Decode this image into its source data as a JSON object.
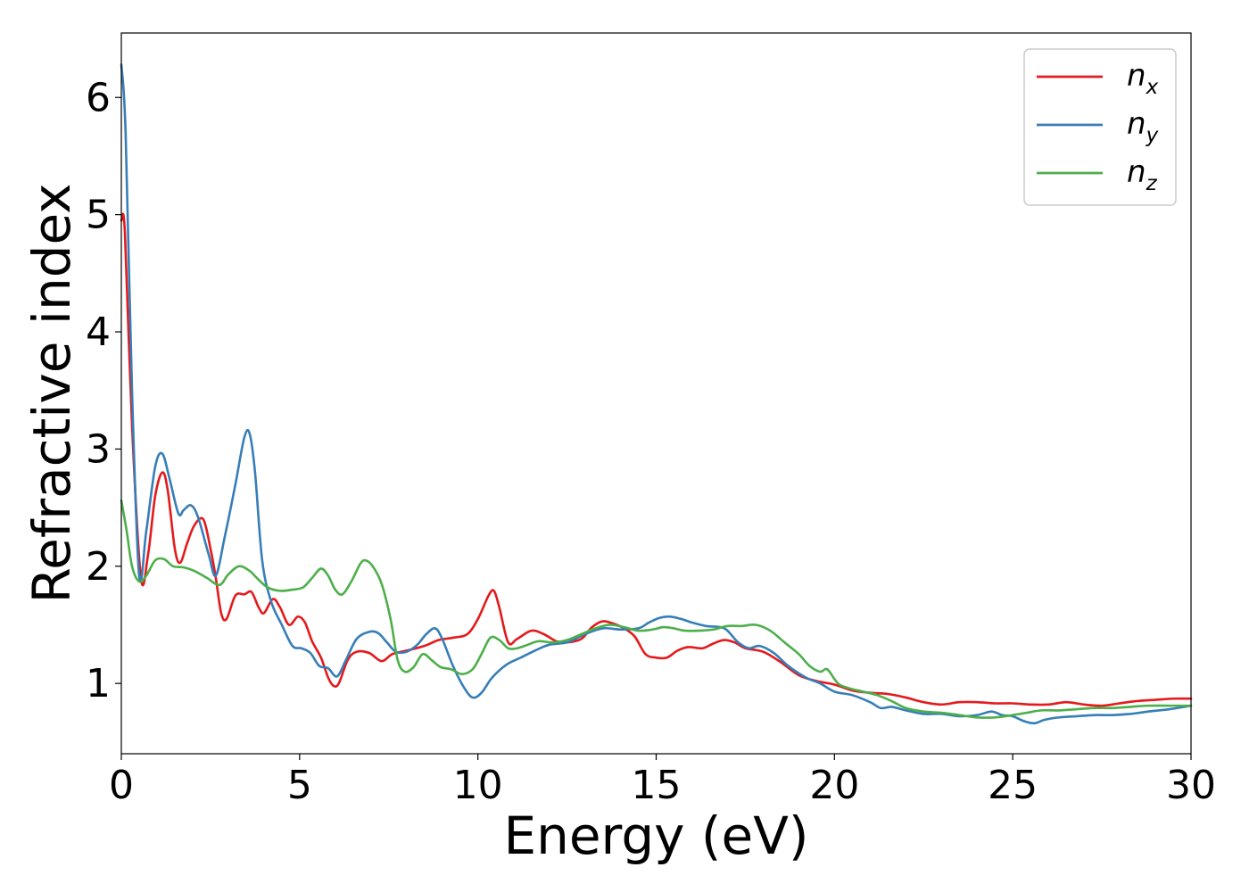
{
  "chart_data": {
    "type": "line",
    "title": "",
    "xlabel": "Energy (eV)",
    "ylabel": "Refractive index",
    "xlim": [
      0,
      30
    ],
    "ylim": [
      0.4,
      6.55
    ],
    "xticks": [
      0,
      5,
      10,
      15,
      20,
      25,
      30
    ],
    "yticks": [
      1,
      2,
      3,
      4,
      5,
      6
    ],
    "grid": false,
    "legend_position": "top-right",
    "series": [
      {
        "name": "n",
        "subscript": "x",
        "color": "#e41a1c",
        "points": [
          [
            0,
            4.95
          ],
          [
            0.1,
            4.85
          ],
          [
            0.3,
            3.2
          ],
          [
            0.55,
            1.9
          ],
          [
            0.75,
            2.1
          ],
          [
            0.95,
            2.6
          ],
          [
            1.15,
            2.8
          ],
          [
            1.3,
            2.65
          ],
          [
            1.5,
            2.15
          ],
          [
            1.65,
            2.03
          ],
          [
            1.85,
            2.2
          ],
          [
            2.05,
            2.35
          ],
          [
            2.3,
            2.4
          ],
          [
            2.5,
            2.15
          ],
          [
            2.65,
            1.9
          ],
          [
            2.8,
            1.6
          ],
          [
            2.95,
            1.55
          ],
          [
            3.2,
            1.75
          ],
          [
            3.45,
            1.76
          ],
          [
            3.65,
            1.78
          ],
          [
            3.85,
            1.65
          ],
          [
            4.0,
            1.6
          ],
          [
            4.25,
            1.72
          ],
          [
            4.45,
            1.65
          ],
          [
            4.7,
            1.5
          ],
          [
            4.95,
            1.57
          ],
          [
            5.15,
            1.52
          ],
          [
            5.35,
            1.36
          ],
          [
            5.6,
            1.22
          ],
          [
            5.8,
            1.05
          ],
          [
            5.95,
            0.98
          ],
          [
            6.1,
            1.0
          ],
          [
            6.35,
            1.2
          ],
          [
            6.6,
            1.27
          ],
          [
            6.95,
            1.26
          ],
          [
            7.3,
            1.19
          ],
          [
            7.6,
            1.25
          ],
          [
            8.0,
            1.28
          ],
          [
            8.5,
            1.32
          ],
          [
            8.9,
            1.37
          ],
          [
            9.3,
            1.39
          ],
          [
            9.7,
            1.42
          ],
          [
            10.0,
            1.55
          ],
          [
            10.3,
            1.75
          ],
          [
            10.45,
            1.79
          ],
          [
            10.6,
            1.65
          ],
          [
            10.85,
            1.35
          ],
          [
            11.1,
            1.38
          ],
          [
            11.5,
            1.45
          ],
          [
            11.85,
            1.42
          ],
          [
            12.2,
            1.36
          ],
          [
            12.5,
            1.35
          ],
          [
            12.9,
            1.38
          ],
          [
            13.2,
            1.48
          ],
          [
            13.5,
            1.53
          ],
          [
            13.8,
            1.51
          ],
          [
            14.1,
            1.47
          ],
          [
            14.4,
            1.4
          ],
          [
            14.7,
            1.25
          ],
          [
            15.0,
            1.22
          ],
          [
            15.3,
            1.22
          ],
          [
            15.6,
            1.28
          ],
          [
            15.9,
            1.31
          ],
          [
            16.3,
            1.3
          ],
          [
            16.6,
            1.34
          ],
          [
            16.9,
            1.37
          ],
          [
            17.2,
            1.35
          ],
          [
            17.5,
            1.3
          ],
          [
            18.0,
            1.27
          ],
          [
            18.5,
            1.18
          ],
          [
            19.0,
            1.07
          ],
          [
            19.5,
            1.02
          ],
          [
            20.0,
            0.99
          ],
          [
            20.5,
            0.94
          ],
          [
            21.0,
            0.92
          ],
          [
            21.5,
            0.91
          ],
          [
            22.0,
            0.88
          ],
          [
            22.5,
            0.84
          ],
          [
            23.0,
            0.82
          ],
          [
            23.5,
            0.84
          ],
          [
            24.0,
            0.84
          ],
          [
            24.5,
            0.83
          ],
          [
            25.0,
            0.83
          ],
          [
            25.5,
            0.82
          ],
          [
            26.0,
            0.82
          ],
          [
            26.5,
            0.84
          ],
          [
            27.0,
            0.82
          ],
          [
            27.5,
            0.81
          ],
          [
            28.0,
            0.83
          ],
          [
            28.5,
            0.85
          ],
          [
            29.0,
            0.86
          ],
          [
            29.5,
            0.87
          ],
          [
            30.0,
            0.87
          ]
        ]
      },
      {
        "name": "n",
        "subscript": "y",
        "color": "#377eb8",
        "points": [
          [
            0,
            6.28
          ],
          [
            0.12,
            5.7
          ],
          [
            0.3,
            3.5
          ],
          [
            0.5,
            1.92
          ],
          [
            0.7,
            2.3
          ],
          [
            0.95,
            2.85
          ],
          [
            1.15,
            2.96
          ],
          [
            1.35,
            2.75
          ],
          [
            1.6,
            2.45
          ],
          [
            1.75,
            2.48
          ],
          [
            1.95,
            2.52
          ],
          [
            2.15,
            2.42
          ],
          [
            2.45,
            2.1
          ],
          [
            2.65,
            1.92
          ],
          [
            2.9,
            2.25
          ],
          [
            3.2,
            2.7
          ],
          [
            3.45,
            3.1
          ],
          [
            3.6,
            3.13
          ],
          [
            3.75,
            2.8
          ],
          [
            3.95,
            2.05
          ],
          [
            4.2,
            1.7
          ],
          [
            4.5,
            1.5
          ],
          [
            4.8,
            1.32
          ],
          [
            5.05,
            1.3
          ],
          [
            5.3,
            1.26
          ],
          [
            5.55,
            1.15
          ],
          [
            5.8,
            1.13
          ],
          [
            6.05,
            1.06
          ],
          [
            6.3,
            1.2
          ],
          [
            6.6,
            1.38
          ],
          [
            6.95,
            1.44
          ],
          [
            7.2,
            1.43
          ],
          [
            7.45,
            1.35
          ],
          [
            7.7,
            1.27
          ],
          [
            8.0,
            1.27
          ],
          [
            8.3,
            1.33
          ],
          [
            8.55,
            1.42
          ],
          [
            8.8,
            1.47
          ],
          [
            9.0,
            1.38
          ],
          [
            9.3,
            1.15
          ],
          [
            9.6,
            0.97
          ],
          [
            9.85,
            0.88
          ],
          [
            10.1,
            0.92
          ],
          [
            10.4,
            1.05
          ],
          [
            10.8,
            1.16
          ],
          [
            11.2,
            1.22
          ],
          [
            11.6,
            1.28
          ],
          [
            12.0,
            1.33
          ],
          [
            12.5,
            1.35
          ],
          [
            13.0,
            1.42
          ],
          [
            13.5,
            1.47
          ],
          [
            14.0,
            1.46
          ],
          [
            14.5,
            1.47
          ],
          [
            14.8,
            1.52
          ],
          [
            15.1,
            1.56
          ],
          [
            15.4,
            1.57
          ],
          [
            15.7,
            1.55
          ],
          [
            16.0,
            1.52
          ],
          [
            16.4,
            1.49
          ],
          [
            16.8,
            1.48
          ],
          [
            17.0,
            1.45
          ],
          [
            17.3,
            1.35
          ],
          [
            17.6,
            1.3
          ],
          [
            17.9,
            1.32
          ],
          [
            18.3,
            1.26
          ],
          [
            18.7,
            1.15
          ],
          [
            19.2,
            1.05
          ],
          [
            19.6,
            1.0
          ],
          [
            20.0,
            0.93
          ],
          [
            20.5,
            0.9
          ],
          [
            21.0,
            0.84
          ],
          [
            21.3,
            0.79
          ],
          [
            21.6,
            0.8
          ],
          [
            22.0,
            0.77
          ],
          [
            22.5,
            0.74
          ],
          [
            23.0,
            0.74
          ],
          [
            23.5,
            0.72
          ],
          [
            24.0,
            0.73
          ],
          [
            24.4,
            0.76
          ],
          [
            24.7,
            0.73
          ],
          [
            25.0,
            0.72
          ],
          [
            25.3,
            0.68
          ],
          [
            25.6,
            0.66
          ],
          [
            25.9,
            0.69
          ],
          [
            26.3,
            0.71
          ],
          [
            26.8,
            0.72
          ],
          [
            27.3,
            0.73
          ],
          [
            27.8,
            0.73
          ],
          [
            28.3,
            0.74
          ],
          [
            28.8,
            0.76
          ],
          [
            29.4,
            0.78
          ],
          [
            30.0,
            0.81
          ]
        ]
      },
      {
        "name": "n",
        "subscript": "z",
        "color": "#4daf4a",
        "points": [
          [
            0,
            2.56
          ],
          [
            0.15,
            2.3
          ],
          [
            0.3,
            2.0
          ],
          [
            0.5,
            1.87
          ],
          [
            0.7,
            1.92
          ],
          [
            0.95,
            2.05
          ],
          [
            1.2,
            2.06
          ],
          [
            1.45,
            2.0
          ],
          [
            1.75,
            1.99
          ],
          [
            2.05,
            1.96
          ],
          [
            2.4,
            1.9
          ],
          [
            2.75,
            1.84
          ],
          [
            3.0,
            1.93
          ],
          [
            3.3,
            2.0
          ],
          [
            3.6,
            1.96
          ],
          [
            3.8,
            1.9
          ],
          [
            4.1,
            1.82
          ],
          [
            4.45,
            1.79
          ],
          [
            4.8,
            1.8
          ],
          [
            5.1,
            1.82
          ],
          [
            5.35,
            1.9
          ],
          [
            5.6,
            1.98
          ],
          [
            5.8,
            1.92
          ],
          [
            6.0,
            1.8
          ],
          [
            6.2,
            1.76
          ],
          [
            6.45,
            1.87
          ],
          [
            6.7,
            2.02
          ],
          [
            6.85,
            2.05
          ],
          [
            7.05,
            2.0
          ],
          [
            7.3,
            1.85
          ],
          [
            7.55,
            1.55
          ],
          [
            7.75,
            1.2
          ],
          [
            7.95,
            1.1
          ],
          [
            8.2,
            1.14
          ],
          [
            8.45,
            1.25
          ],
          [
            8.7,
            1.2
          ],
          [
            8.95,
            1.14
          ],
          [
            9.25,
            1.12
          ],
          [
            9.55,
            1.08
          ],
          [
            9.85,
            1.12
          ],
          [
            10.1,
            1.25
          ],
          [
            10.35,
            1.39
          ],
          [
            10.6,
            1.37
          ],
          [
            10.85,
            1.3
          ],
          [
            11.1,
            1.3
          ],
          [
            11.4,
            1.33
          ],
          [
            11.7,
            1.36
          ],
          [
            12.1,
            1.35
          ],
          [
            12.5,
            1.37
          ],
          [
            12.9,
            1.42
          ],
          [
            13.3,
            1.47
          ],
          [
            13.7,
            1.5
          ],
          [
            14.1,
            1.48
          ],
          [
            14.5,
            1.45
          ],
          [
            14.9,
            1.46
          ],
          [
            15.2,
            1.48
          ],
          [
            15.5,
            1.47
          ],
          [
            15.8,
            1.45
          ],
          [
            16.2,
            1.45
          ],
          [
            16.6,
            1.46
          ],
          [
            17.0,
            1.49
          ],
          [
            17.4,
            1.49
          ],
          [
            17.8,
            1.5
          ],
          [
            18.2,
            1.45
          ],
          [
            18.6,
            1.35
          ],
          [
            19.0,
            1.25
          ],
          [
            19.3,
            1.15
          ],
          [
            19.6,
            1.1
          ],
          [
            19.8,
            1.12
          ],
          [
            20.1,
            1.0
          ],
          [
            20.4,
            0.96
          ],
          [
            20.8,
            0.93
          ],
          [
            21.2,
            0.9
          ],
          [
            21.6,
            0.85
          ],
          [
            22.0,
            0.79
          ],
          [
            22.5,
            0.76
          ],
          [
            23.0,
            0.75
          ],
          [
            23.5,
            0.73
          ],
          [
            24.0,
            0.71
          ],
          [
            24.5,
            0.71
          ],
          [
            25.0,
            0.73
          ],
          [
            25.4,
            0.75
          ],
          [
            25.8,
            0.77
          ],
          [
            26.3,
            0.77
          ],
          [
            26.8,
            0.78
          ],
          [
            27.3,
            0.79
          ],
          [
            27.8,
            0.79
          ],
          [
            28.3,
            0.8
          ],
          [
            28.8,
            0.81
          ],
          [
            29.4,
            0.81
          ],
          [
            30.0,
            0.81
          ]
        ]
      }
    ]
  }
}
